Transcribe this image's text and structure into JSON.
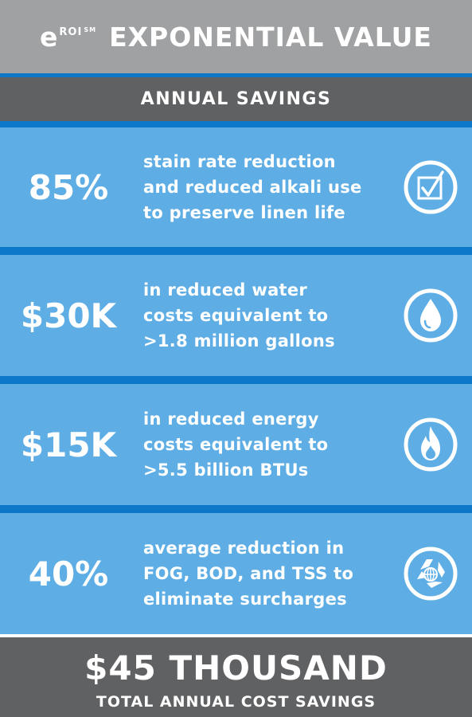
{
  "header": {
    "brand_e": "e",
    "brand_roi": "ROI",
    "brand_sm": "SM",
    "title": "EXPONENTIAL VALUE"
  },
  "subheader": {
    "label": "ANNUAL SAVINGS"
  },
  "rows": [
    {
      "value": "85%",
      "lines": [
        "stain rate reduction",
        "and reduced alkali use",
        "to preserve linen life"
      ],
      "icon": "checkbox-icon"
    },
    {
      "value": "$30K",
      "lines": [
        "in reduced water",
        "costs equivalent to",
        ">1.8 million gallons"
      ],
      "icon": "water-drop-icon"
    },
    {
      "value": "$15K",
      "lines": [
        "in reduced energy",
        "costs equivalent to",
        ">5.5 billion BTUs"
      ],
      "icon": "flame-icon"
    },
    {
      "value": "40%",
      "lines": [
        "average reduction in",
        "FOG, BOD, and TSS to",
        "eliminate surcharges"
      ],
      "icon": "recycle-globe-icon"
    }
  ],
  "footer": {
    "total": "$45 THOUSAND",
    "caption": "TOTAL ANNUAL COST SAVINGS"
  },
  "colors": {
    "header_bg": "#a0a1a3",
    "stripe": "#0d78c8",
    "dark_band": "#606163",
    "row_bg": "#5eaee5",
    "text": "#ffffff"
  }
}
